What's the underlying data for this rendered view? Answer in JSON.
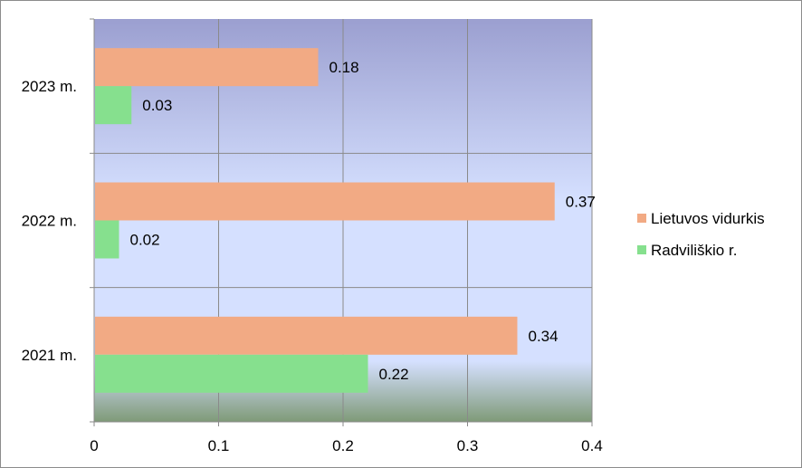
{
  "chart_data": {
    "type": "bar",
    "orientation": "horizontal",
    "categories": [
      "2021 m.",
      "2022 m.",
      "2023 m."
    ],
    "series": [
      {
        "name": "Lietuvos vidurkis",
        "values": [
          0.34,
          0.37,
          0.18
        ],
        "color": "#f2aa84"
      },
      {
        "name": "Radviliškio r.",
        "values": [
          0.22,
          0.02,
          0.03
        ],
        "color": "#86e08e"
      }
    ],
    "data_labels": {
      "Lietuvos vidurkis": [
        "0.34",
        "0.37",
        "0.18"
      ],
      "Radviliškio r.": [
        "0.22",
        "0.02",
        "0.03"
      ]
    },
    "x_ticks": [
      "0",
      "0.1",
      "0.2",
      "0.3",
      "0.4"
    ],
    "xlim": [
      0,
      0.4
    ],
    "grid": true,
    "legend_position": "right",
    "title": "",
    "xlabel": "",
    "ylabel": "",
    "plot_background": [
      "#9b9fd0",
      "#d5e0ff",
      "#7f9a78"
    ]
  }
}
